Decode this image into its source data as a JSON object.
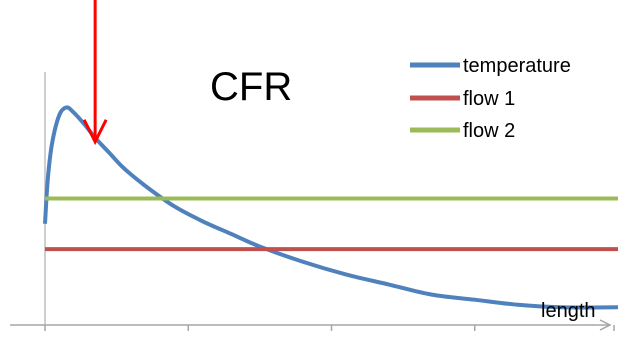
{
  "chart_data": {
    "type": "line",
    "title": "CFR",
    "xlabel": "length",
    "ylabel": "",
    "xlim": [
      0,
      4
    ],
    "ylim": [
      0,
      1
    ],
    "legend_position": "top-right",
    "grid": false,
    "x_ticks": [
      0,
      1,
      2,
      3,
      4
    ],
    "series": [
      {
        "name": "temperature",
        "color": "#4f81bd",
        "style": "curve",
        "x": [
          0,
          0.02,
          0.05,
          0.1,
          0.15,
          0.2,
          0.28,
          0.35,
          0.45,
          0.55,
          0.7,
          0.9,
          1.1,
          1.3,
          1.5,
          1.8,
          2.1,
          2.4,
          2.7,
          3.0,
          3.3,
          3.6,
          4.0
        ],
        "values": [
          0.4,
          0.58,
          0.72,
          0.83,
          0.86,
          0.84,
          0.79,
          0.74,
          0.68,
          0.62,
          0.55,
          0.47,
          0.41,
          0.36,
          0.31,
          0.25,
          0.2,
          0.16,
          0.12,
          0.1,
          0.08,
          0.07,
          0.07
        ]
      },
      {
        "name": "flow 1",
        "color": "#c0504d",
        "style": "hline",
        "values": [
          0.3,
          0.3
        ]
      },
      {
        "name": "flow 2",
        "color": "#9bbb59",
        "style": "hline",
        "values": [
          0.5,
          0.5
        ]
      }
    ],
    "annotation": {
      "type": "arrow",
      "color": "#ff0000",
      "x": 0.35,
      "y": 0.74
    }
  }
}
